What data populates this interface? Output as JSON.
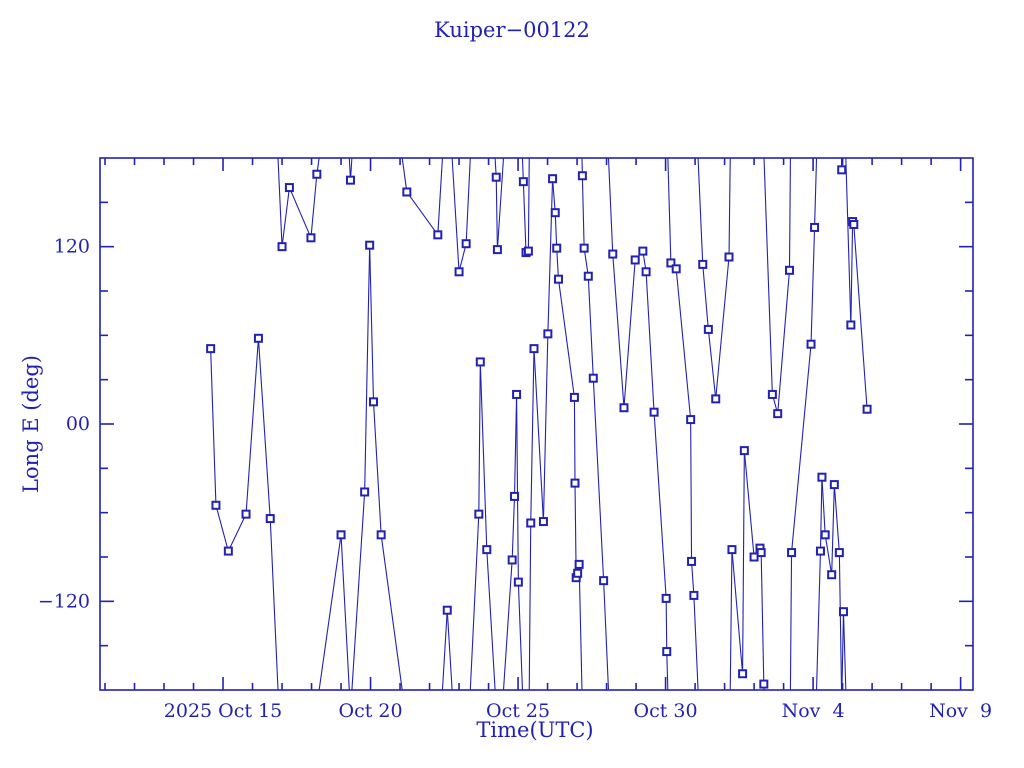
{
  "title": "Kuiper−00122",
  "colors": {
    "plot_blue": "#2222b2",
    "background": "#ffffff"
  },
  "chart_data": {
    "type": "line",
    "title": "Kuiper−00122",
    "xlabel": "Time(UTC)",
    "ylabel": "Long E (deg)",
    "marker": "open-square",
    "grid": false,
    "legend": "none",
    "x_unit": "day of October 2025 (Nov n = 31 + n)",
    "xlim": [
      10.83,
      40.42
    ],
    "ylim": [
      -180,
      180
    ],
    "wrap_degrees": 360,
    "y_minor_step": 30,
    "y_tick_labels": [
      {
        "value": 120,
        "label": "120"
      },
      {
        "value": 0,
        "label": "00"
      },
      {
        "value": -120,
        "label": "−120"
      }
    ],
    "x_major_ticks": [
      {
        "day": 15,
        "label": "2025 Oct 15"
      },
      {
        "day": 20,
        "label": "Oct 20"
      },
      {
        "day": 25,
        "label": "Oct 25"
      },
      {
        "day": 30,
        "label": "Oct 30"
      },
      {
        "day": 35,
        "label": "Nov  4"
      },
      {
        "day": 40,
        "label": "Nov  9"
      }
    ],
    "points": [
      [
        14.58,
        51
      ],
      [
        14.76,
        -55
      ],
      [
        15.18,
        -86
      ],
      [
        15.78,
        -61
      ],
      [
        16.2,
        58
      ],
      [
        16.6,
        -64
      ],
      [
        17.0,
        120
      ],
      [
        17.25,
        160
      ],
      [
        17.98,
        126
      ],
      [
        18.18,
        169
      ],
      [
        19.0,
        -75
      ],
      [
        19.32,
        165
      ],
      [
        19.8,
        -46
      ],
      [
        19.97,
        121
      ],
      [
        20.1,
        15
      ],
      [
        20.36,
        -75
      ],
      [
        21.23,
        157
      ],
      [
        22.28,
        128
      ],
      [
        22.6,
        -126
      ],
      [
        23.0,
        103
      ],
      [
        23.24,
        122
      ],
      [
        23.67,
        -61
      ],
      [
        23.72,
        42
      ],
      [
        23.94,
        -85
      ],
      [
        24.26,
        167
      ],
      [
        24.3,
        118
      ],
      [
        24.8,
        -92
      ],
      [
        24.88,
        -49
      ],
      [
        24.95,
        20
      ],
      [
        25.01,
        -107
      ],
      [
        25.18,
        164
      ],
      [
        25.27,
        116
      ],
      [
        25.35,
        117
      ],
      [
        25.43,
        -67
      ],
      [
        25.54,
        51
      ],
      [
        25.86,
        -66
      ],
      [
        26.01,
        61
      ],
      [
        26.17,
        166
      ],
      [
        26.26,
        143
      ],
      [
        26.31,
        119
      ],
      [
        26.37,
        98
      ],
      [
        26.91,
        18
      ],
      [
        26.93,
        -40
      ],
      [
        26.97,
        -104
      ],
      [
        27.02,
        -101
      ],
      [
        27.07,
        -95
      ],
      [
        27.18,
        168
      ],
      [
        27.24,
        119
      ],
      [
        27.38,
        100
      ],
      [
        27.55,
        31
      ],
      [
        27.9,
        -106
      ],
      [
        28.21,
        115
      ],
      [
        28.59,
        11
      ],
      [
        28.97,
        111
      ],
      [
        29.23,
        117
      ],
      [
        29.34,
        103
      ],
      [
        29.61,
        8
      ],
      [
        30.02,
        -118
      ],
      [
        30.04,
        -154
      ],
      [
        30.18,
        109
      ],
      [
        30.36,
        105
      ],
      [
        30.85,
        3
      ],
      [
        30.88,
        -93
      ],
      [
        30.96,
        -116
      ],
      [
        31.26,
        108
      ],
      [
        31.45,
        64
      ],
      [
        31.7,
        17
      ],
      [
        32.15,
        113
      ],
      [
        32.25,
        -85
      ],
      [
        32.61,
        -169
      ],
      [
        32.67,
        -18
      ],
      [
        33.0,
        -90
      ],
      [
        33.2,
        -84
      ],
      [
        33.24,
        -87
      ],
      [
        33.33,
        -176
      ],
      [
        33.62,
        20
      ],
      [
        33.8,
        7
      ],
      [
        34.2,
        104
      ],
      [
        34.27,
        -87
      ],
      [
        34.93,
        54
      ],
      [
        35.05,
        133
      ],
      [
        35.25,
        -86
      ],
      [
        35.3,
        -36
      ],
      [
        35.41,
        -75
      ],
      [
        35.63,
        -102
      ],
      [
        35.72,
        -41
      ],
      [
        35.89,
        -87
      ],
      [
        35.97,
        172
      ],
      [
        36.03,
        -127
      ],
      [
        36.28,
        67
      ],
      [
        36.34,
        137
      ],
      [
        36.38,
        135
      ],
      [
        36.83,
        10
      ]
    ]
  }
}
